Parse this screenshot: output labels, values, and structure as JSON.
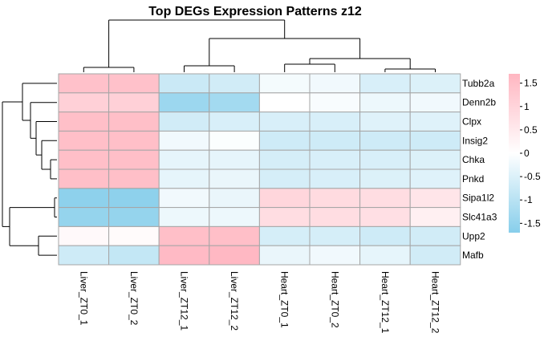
{
  "chart_data": {
    "type": "heatmap",
    "title": "Top DEGs Expression Patterns z12",
    "rows": [
      "Tubb2a",
      "Denn2b",
      "Clpx",
      "Insig2",
      "Chka",
      "Pnkd",
      "Sipa1l2",
      "Slc41a3",
      "Upp2",
      "Mafb"
    ],
    "columns": [
      "Liver_ZT0_1",
      "Liver_ZT0_2",
      "Liver_ZT12_1",
      "Liver_ZT12_2",
      "Heart_ZT0_1",
      "Heart_ZT0_2",
      "Heart_ZT12_1",
      "Heart_ZT12_2"
    ],
    "values": [
      [
        1.45,
        1.45,
        -0.75,
        -0.65,
        -0.15,
        -0.2,
        -0.55,
        -0.5
      ],
      [
        1.1,
        1.1,
        -1.4,
        -1.3,
        0.0,
        -0.1,
        -0.25,
        -0.2
      ],
      [
        1.5,
        1.5,
        -0.65,
        -0.55,
        -0.55,
        -0.55,
        -0.45,
        -0.45
      ],
      [
        1.5,
        1.5,
        -0.2,
        -0.05,
        -0.7,
        -0.7,
        -0.7,
        -0.7
      ],
      [
        1.5,
        1.5,
        -0.35,
        -0.35,
        -0.6,
        -0.55,
        -0.55,
        -0.5
      ],
      [
        1.5,
        1.5,
        -0.35,
        -0.3,
        -0.6,
        -0.55,
        -0.5,
        -0.45
      ],
      [
        -1.6,
        -1.6,
        -0.2,
        -0.3,
        0.95,
        0.85,
        0.8,
        0.6
      ],
      [
        -1.5,
        -1.5,
        -0.25,
        -0.25,
        0.8,
        0.8,
        0.75,
        0.35
      ],
      [
        0.15,
        0.1,
        1.5,
        1.5,
        -0.6,
        -0.6,
        -0.7,
        -0.65
      ],
      [
        -0.7,
        -0.85,
        1.6,
        1.65,
        -0.3,
        -0.2,
        -0.35,
        -0.65
      ]
    ],
    "legend_ticks": [
      1.5,
      1,
      0.5,
      0,
      -0.5,
      -1,
      -1.5
    ],
    "legend_labels": [
      "1.5",
      "1",
      "0.5",
      "0",
      "-0.5",
      "-1",
      "-1.5"
    ],
    "color_range": [
      -1.7,
      1.7
    ],
    "colors": {
      "low": "#87ceeb",
      "mid": "#ffffff",
      "high": "#ffb6c1",
      "border": "#a6a6a6"
    },
    "column_clusters": "((Liver_ZT0_1,Liver_ZT0_2),((Liver_ZT12_1,Liver_ZT12_2),((Heart_ZT0_1,Heart_ZT0_2),(Heart_ZT12_1,Heart_ZT12_2))))",
    "row_clusters": "((Tubb2a,(Denn2b,(Clpx,(Insig2,(Chka,Pnkd))))),((Sipa1l2,Slc41a3),(Upp2,Mafb)))",
    "legend_placement": "right"
  }
}
